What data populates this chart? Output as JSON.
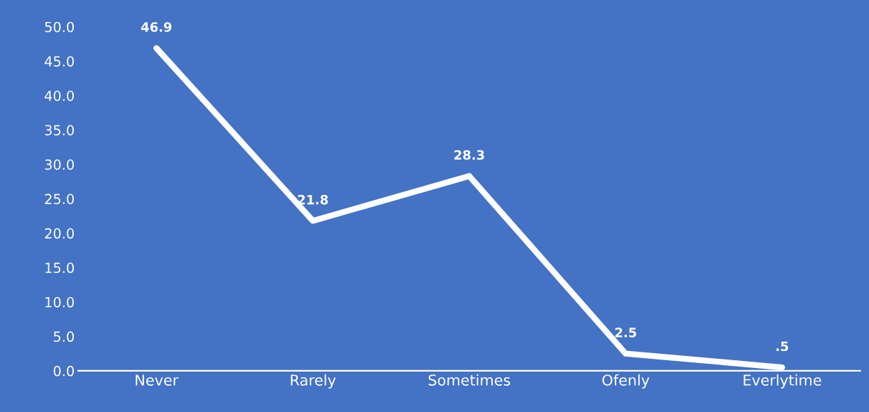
{
  "chart_data": {
    "type": "line",
    "categories": [
      "Never",
      "Rarely",
      "Sometimes",
      "Ofenly",
      "Everlytime"
    ],
    "series": [
      {
        "color": "#ffffff",
        "values": [
          46.9,
          21.8,
          28.3,
          2.5,
          0.5
        ],
        "value_labels": [
          "46.9",
          "21.8",
          "28.3",
          "2.5",
          ".5"
        ]
      }
    ],
    "ylim": [
      0,
      50
    ],
    "yticks": [
      {
        "value": 0,
        "label": "0.0"
      },
      {
        "value": 5,
        "label": "5.0"
      },
      {
        "value": 10,
        "label": "10.0"
      },
      {
        "value": 15,
        "label": "15.0"
      },
      {
        "value": 20,
        "label": "20.0"
      },
      {
        "value": 25,
        "label": "25.0"
      },
      {
        "value": 30,
        "label": "30.0"
      },
      {
        "value": 35,
        "label": "35.0"
      },
      {
        "value": 40,
        "label": "40.0"
      },
      {
        "value": 45,
        "label": "45.0"
      },
      {
        "value": 50,
        "label": "50.0"
      }
    ],
    "grid": false,
    "marker": "none",
    "line_style": "solid"
  }
}
